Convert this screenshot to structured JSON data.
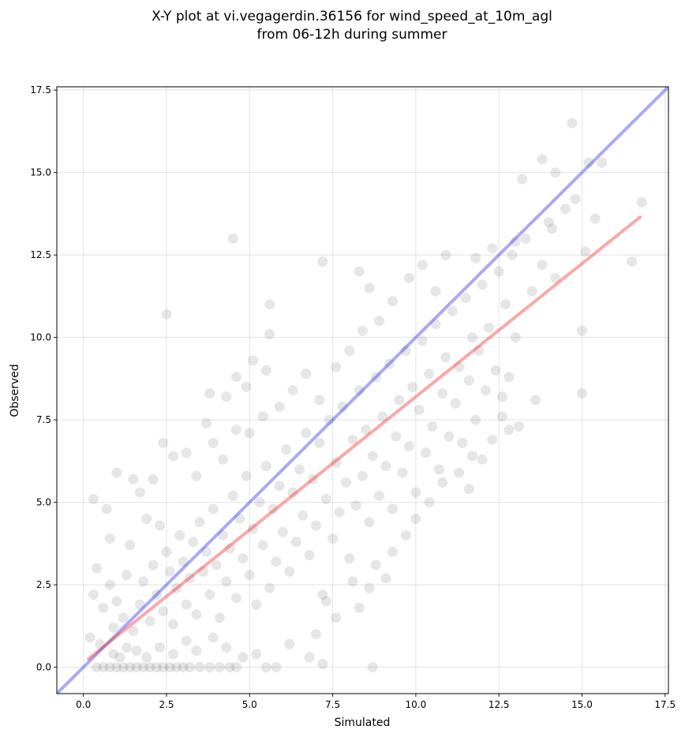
{
  "chart_data": {
    "type": "scatter",
    "title": [
      "X-Y plot at vi.vegagerdin.36156 for wind_speed_at_10m_agl",
      "from 06-12h during summer"
    ],
    "xlabel": "Simulated",
    "ylabel": "Observed",
    "xlim": [
      -0.8,
      17.6
    ],
    "ylim": [
      -0.8,
      17.6
    ],
    "xticks": [
      "0.0",
      "2.5",
      "5.0",
      "7.5",
      "10.0",
      "12.5",
      "15.0",
      "17.5"
    ],
    "yticks": [
      "0.0",
      "2.5",
      "5.0",
      "7.5",
      "10.0",
      "12.5",
      "15.0",
      "17.5"
    ],
    "grid": true,
    "series": [
      {
        "kind": "points",
        "color": "#404040",
        "points": [
          [
            0.4,
            0
          ],
          [
            0.6,
            0
          ],
          [
            0.8,
            0
          ],
          [
            1.0,
            0
          ],
          [
            1.2,
            0
          ],
          [
            1.4,
            0
          ],
          [
            1.6,
            0
          ],
          [
            1.8,
            0
          ],
          [
            2.0,
            0
          ],
          [
            2.2,
            0
          ],
          [
            2.4,
            0
          ],
          [
            2.6,
            0
          ],
          [
            2.8,
            0
          ],
          [
            3.0,
            0
          ],
          [
            3.2,
            0
          ],
          [
            3.5,
            0
          ],
          [
            3.8,
            0
          ],
          [
            4.1,
            0
          ],
          [
            4.4,
            0
          ],
          [
            4.6,
            0
          ],
          [
            5.5,
            0
          ],
          [
            5.8,
            0
          ],
          [
            8.7,
            0
          ],
          [
            0.2,
            0.9
          ],
          [
            0.5,
            0.7
          ],
          [
            0.9,
            0.4
          ],
          [
            1.1,
            0.3
          ],
          [
            1.3,
            0.6
          ],
          [
            1.6,
            0.5
          ],
          [
            1.9,
            0.3
          ],
          [
            2.3,
            0.6
          ],
          [
            2.7,
            0.4
          ],
          [
            3.1,
            0.8
          ],
          [
            3.4,
            0.5
          ],
          [
            3.9,
            0.9
          ],
          [
            4.3,
            0.6
          ],
          [
            4.8,
            0.3
          ],
          [
            5.2,
            0.4
          ],
          [
            6.2,
            0.7
          ],
          [
            6.8,
            0.3
          ],
          [
            7.2,
            0.1
          ],
          [
            0.3,
            2.2
          ],
          [
            0.4,
            3.0
          ],
          [
            0.6,
            1.8
          ],
          [
            0.8,
            2.5
          ],
          [
            0.9,
            1.2
          ],
          [
            1.0,
            2.0
          ],
          [
            1.2,
            1.5
          ],
          [
            1.3,
            2.8
          ],
          [
            1.5,
            1.1
          ],
          [
            1.7,
            1.9
          ],
          [
            1.8,
            2.6
          ],
          [
            2.0,
            1.4
          ],
          [
            2.1,
            3.1
          ],
          [
            2.2,
            2.2
          ],
          [
            2.4,
            1.7
          ],
          [
            2.5,
            3.5
          ],
          [
            2.6,
            2.9
          ],
          [
            2.7,
            1.3
          ],
          [
            2.8,
            2.4
          ],
          [
            2.9,
            4.0
          ],
          [
            3.0,
            3.2
          ],
          [
            3.1,
            1.9
          ],
          [
            3.2,
            2.7
          ],
          [
            3.3,
            3.8
          ],
          [
            3.4,
            1.6
          ],
          [
            3.5,
            4.4
          ],
          [
            3.6,
            2.9
          ],
          [
            3.7,
            3.5
          ],
          [
            3.8,
            2.2
          ],
          [
            3.9,
            4.8
          ],
          [
            4.0,
            3.1
          ],
          [
            4.1,
            1.5
          ],
          [
            4.2,
            4.0
          ],
          [
            4.3,
            2.6
          ],
          [
            4.4,
            3.6
          ],
          [
            4.5,
            5.2
          ],
          [
            4.6,
            2.1
          ],
          [
            4.7,
            4.5
          ],
          [
            4.8,
            3.3
          ],
          [
            4.9,
            5.8
          ],
          [
            5.0,
            2.8
          ],
          [
            5.1,
            4.2
          ],
          [
            5.2,
            1.9
          ],
          [
            5.3,
            5.0
          ],
          [
            5.4,
            3.7
          ],
          [
            5.5,
            6.1
          ],
          [
            5.6,
            2.4
          ],
          [
            5.7,
            4.8
          ],
          [
            5.8,
            3.2
          ],
          [
            5.9,
            5.5
          ],
          [
            6.0,
            4.1
          ],
          [
            6.1,
            6.6
          ],
          [
            6.2,
            2.9
          ],
          [
            6.3,
            5.3
          ],
          [
            6.4,
            3.8
          ],
          [
            6.5,
            6.0
          ],
          [
            6.6,
            4.6
          ],
          [
            6.7,
            7.1
          ],
          [
            6.8,
            3.4
          ],
          [
            6.9,
            5.7
          ],
          [
            7.0,
            4.3
          ],
          [
            7.1,
            6.8
          ],
          [
            7.2,
            2.2
          ],
          [
            7.3,
            5.1
          ],
          [
            7.4,
            7.5
          ],
          [
            7.5,
            3.9
          ],
          [
            7.6,
            6.2
          ],
          [
            7.7,
            4.7
          ],
          [
            7.8,
            7.9
          ],
          [
            7.9,
            5.6
          ],
          [
            8.0,
            3.3
          ],
          [
            8.1,
            6.9
          ],
          [
            8.2,
            4.9
          ],
          [
            8.3,
            8.4
          ],
          [
            8.4,
            5.8
          ],
          [
            8.5,
            7.2
          ],
          [
            8.6,
            4.4
          ],
          [
            8.7,
            6.4
          ],
          [
            8.8,
            8.8
          ],
          [
            8.9,
            5.2
          ],
          [
            9.0,
            7.6
          ],
          [
            9.1,
            6.1
          ],
          [
            9.2,
            9.2
          ],
          [
            9.3,
            4.8
          ],
          [
            9.4,
            7.0
          ],
          [
            9.5,
            8.1
          ],
          [
            9.6,
            5.9
          ],
          [
            9.7,
            9.6
          ],
          [
            9.8,
            6.7
          ],
          [
            9.9,
            8.5
          ],
          [
            10.0,
            5.3
          ],
          [
            10.1,
            7.8
          ],
          [
            10.2,
            9.9
          ],
          [
            10.3,
            6.5
          ],
          [
            10.4,
            8.9
          ],
          [
            10.5,
            7.3
          ],
          [
            10.6,
            10.4
          ],
          [
            10.7,
            6.0
          ],
          [
            10.8,
            8.3
          ],
          [
            10.9,
            9.4
          ],
          [
            11.0,
            7.0
          ],
          [
            11.1,
            10.8
          ],
          [
            11.2,
            8.0
          ],
          [
            11.3,
            9.1
          ],
          [
            11.4,
            6.8
          ],
          [
            11.5,
            11.2
          ],
          [
            11.6,
            8.7
          ],
          [
            11.7,
            10.0
          ],
          [
            11.8,
            7.5
          ],
          [
            11.9,
            9.6
          ],
          [
            12.0,
            11.6
          ],
          [
            12.1,
            8.4
          ],
          [
            12.2,
            10.3
          ],
          [
            12.4,
            9.0
          ],
          [
            12.5,
            12.0
          ],
          [
            12.6,
            7.6
          ],
          [
            12.7,
            11.0
          ],
          [
            12.8,
            8.8
          ],
          [
            12.9,
            12.5
          ],
          [
            13.0,
            10.0
          ],
          [
            13.1,
            7.3
          ],
          [
            13.3,
            13.0
          ],
          [
            13.5,
            11.4
          ],
          [
            13.6,
            8.1
          ],
          [
            13.8,
            12.2
          ],
          [
            14.0,
            13.5
          ],
          [
            14.2,
            11.8
          ],
          [
            14.5,
            13.9
          ],
          [
            14.8,
            14.2
          ],
          [
            15.0,
            10.2
          ],
          [
            15.0,
            8.3
          ],
          [
            15.1,
            12.6
          ],
          [
            15.2,
            15.3
          ],
          [
            15.4,
            13.6
          ],
          [
            15.6,
            15.3
          ],
          [
            14.7,
            16.5
          ],
          [
            13.8,
            15.4
          ],
          [
            14.2,
            15.0
          ],
          [
            13.2,
            14.8
          ],
          [
            16.5,
            12.3
          ],
          [
            16.8,
            14.1
          ],
          [
            14.1,
            13.3
          ],
          [
            13.0,
            12.9
          ],
          [
            12.3,
            12.7
          ],
          [
            11.8,
            12.4
          ],
          [
            4.5,
            13.0
          ],
          [
            2.5,
            10.7
          ],
          [
            5.6,
            11.0
          ],
          [
            5.6,
            10.1
          ],
          [
            7.2,
            12.3
          ],
          [
            8.3,
            12.0
          ],
          [
            8.6,
            11.5
          ],
          [
            3.8,
            8.3
          ],
          [
            4.3,
            8.2
          ],
          [
            4.6,
            8.8
          ],
          [
            4.9,
            8.5
          ],
          [
            5.1,
            9.3
          ],
          [
            5.5,
            9.0
          ],
          [
            3.7,
            7.4
          ],
          [
            2.4,
            6.8
          ],
          [
            4.6,
            7.2
          ],
          [
            0.3,
            5.1
          ],
          [
            0.7,
            4.8
          ],
          [
            1.0,
            5.9
          ],
          [
            1.5,
            5.7
          ],
          [
            1.7,
            5.3
          ],
          [
            2.1,
            5.7
          ],
          [
            0.8,
            3.9
          ],
          [
            1.4,
            3.7
          ],
          [
            1.9,
            4.5
          ],
          [
            2.3,
            4.3
          ],
          [
            2.7,
            6.4
          ],
          [
            3.1,
            6.5
          ],
          [
            3.4,
            5.8
          ],
          [
            3.9,
            6.8
          ],
          [
            4.2,
            6.3
          ],
          [
            5.0,
            7.1
          ],
          [
            5.4,
            7.6
          ],
          [
            5.9,
            7.9
          ],
          [
            6.3,
            8.4
          ],
          [
            6.7,
            8.9
          ],
          [
            7.1,
            8.1
          ],
          [
            7.6,
            9.1
          ],
          [
            8.0,
            9.6
          ],
          [
            8.4,
            10.2
          ],
          [
            8.9,
            10.5
          ],
          [
            9.3,
            11.1
          ],
          [
            9.8,
            11.8
          ],
          [
            10.2,
            12.2
          ],
          [
            10.6,
            11.4
          ],
          [
            10.9,
            12.5
          ],
          [
            7.0,
            1.0
          ],
          [
            7.3,
            2.0
          ],
          [
            7.6,
            1.5
          ],
          [
            8.1,
            2.6
          ],
          [
            8.3,
            1.8
          ],
          [
            8.6,
            2.4
          ],
          [
            8.8,
            3.1
          ],
          [
            9.1,
            2.7
          ],
          [
            9.3,
            3.5
          ],
          [
            9.7,
            4.0
          ],
          [
            10.0,
            4.5
          ],
          [
            10.4,
            5.0
          ],
          [
            10.8,
            5.6
          ],
          [
            11.3,
            5.9
          ],
          [
            11.7,
            6.4
          ],
          [
            11.6,
            5.4
          ],
          [
            12.0,
            6.3
          ],
          [
            12.3,
            6.9
          ],
          [
            12.8,
            7.2
          ],
          [
            12.6,
            8.2
          ]
        ]
      },
      {
        "kind": "line",
        "name": "",
        "color": "#3333ee",
        "from": [
          -0.8,
          -0.8
        ],
        "to": [
          17.6,
          17.6
        ]
      },
      {
        "kind": "line",
        "name": "",
        "color": "#ee3333",
        "from": [
          0.15,
          0.25
        ],
        "to": [
          16.75,
          13.65
        ]
      }
    ]
  }
}
